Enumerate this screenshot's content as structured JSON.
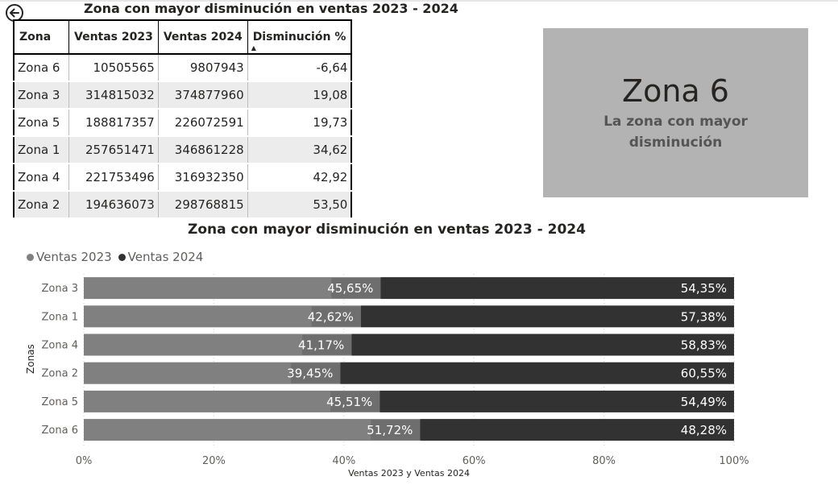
{
  "back_button": {
    "icon": "arrow-left-icon"
  },
  "table": {
    "title": "Zona con mayor disminución en ventas 2023 - 2024",
    "headers": [
      "Zona",
      "Ventas 2023",
      "Ventas 2024",
      "Disminución %"
    ],
    "sort_indicator": "▲",
    "rows": [
      [
        "Zona 6",
        "10505565",
        "9807943",
        "-6,64"
      ],
      [
        "Zona 3",
        "314815032",
        "374877960",
        "19,08"
      ],
      [
        "Zona 5",
        "188817357",
        "226072591",
        "19,73"
      ],
      [
        "Zona 1",
        "257651471",
        "346861228",
        "34,62"
      ],
      [
        "Zona 4",
        "221753496",
        "316932350",
        "42,92"
      ],
      [
        "Zona 2",
        "194636073",
        "298768815",
        "53,50"
      ]
    ]
  },
  "card": {
    "value": "Zona 6",
    "label": "La zona con mayor disminución"
  },
  "chart_data": {
    "type": "bar",
    "orientation": "horizontal",
    "stacked": "100%",
    "title": "Zona con mayor disminución en ventas 2023 - 2024",
    "xlabel": "Ventas 2023 y Ventas 2024",
    "ylabel": "Zonas",
    "categories": [
      "Zona 3",
      "Zona 1",
      "Zona 4",
      "Zona 2",
      "Zona 5",
      "Zona 6"
    ],
    "series": [
      {
        "name": "Ventas 2023",
        "color": "#808080",
        "values": [
          45.65,
          42.62,
          41.17,
          39.45,
          45.51,
          51.72
        ],
        "labels": [
          "45,65%",
          "42,62%",
          "41,17%",
          "39,45%",
          "45,51%",
          "51,72%"
        ]
      },
      {
        "name": "Ventas 2024",
        "color": "#323232",
        "values": [
          54.35,
          57.38,
          58.83,
          60.55,
          54.49,
          48.28
        ],
        "labels": [
          "54,35%",
          "57,38%",
          "58,83%",
          "60,55%",
          "54,49%",
          "48,28%"
        ]
      }
    ],
    "xlim": [
      0,
      100
    ],
    "xticks": [
      0,
      20,
      40,
      60,
      80,
      100
    ],
    "xtick_labels": [
      "0%",
      "20%",
      "40%",
      "60%",
      "80%",
      "100%"
    ],
    "grid": true,
    "legend_position": "top-left",
    "label_bg_color": "#6e6e6e"
  }
}
